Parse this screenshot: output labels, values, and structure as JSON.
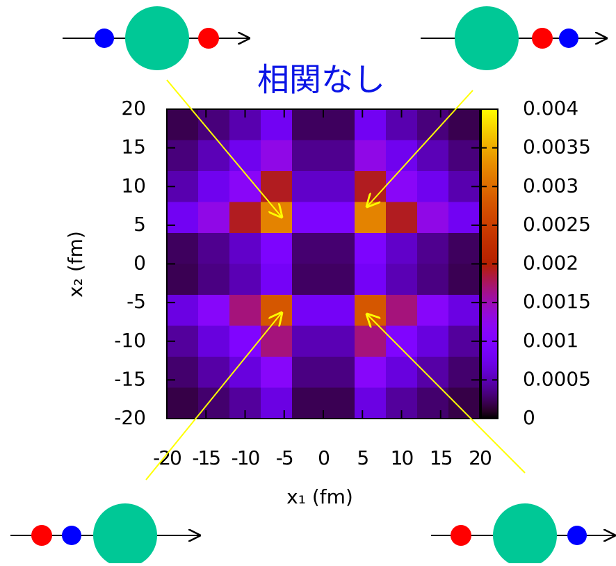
{
  "chart_data": {
    "type": "heatmap",
    "title": "相関なし",
    "x_label": "x₁ (fm)",
    "y_label": "x₂ (fm)",
    "x": [
      -18,
      -14,
      -10,
      -6,
      -2,
      2,
      6,
      10,
      14,
      18
    ],
    "y": [
      18,
      14,
      10,
      6,
      2,
      -2,
      -6,
      -10,
      -14,
      -18
    ],
    "z": [
      [
        0.0002,
        0.00032,
        0.00048,
        0.0008,
        0.00024,
        0.00024,
        0.0008,
        0.00048,
        0.00032,
        0.0002
      ],
      [
        0.00032,
        0.00051,
        0.00077,
        0.00128,
        0.00038,
        0.00038,
        0.00128,
        0.00077,
        0.00051,
        0.00032
      ],
      [
        0.00048,
        0.00077,
        0.00115,
        0.00192,
        0.00058,
        0.00058,
        0.00192,
        0.00115,
        0.00077,
        0.00048
      ],
      [
        0.0008,
        0.00128,
        0.00192,
        0.0032,
        0.00096,
        0.00096,
        0.0032,
        0.00192,
        0.00128,
        0.0008
      ],
      [
        0.00024,
        0.00038,
        0.00058,
        0.00096,
        0.00029,
        0.00029,
        0.00096,
        0.00058,
        0.00038,
        0.00024
      ],
      [
        0.00021,
        0.00034,
        0.0005,
        0.00084,
        0.00025,
        0.00025,
        0.00084,
        0.0005,
        0.00034,
        0.00021
      ],
      [
        0.0007,
        0.00112,
        0.00168,
        0.0028,
        0.00084,
        0.00084,
        0.0028,
        0.00168,
        0.00112,
        0.0007
      ],
      [
        0.00042,
        0.00067,
        0.00101,
        0.00168,
        0.0005,
        0.0005,
        0.00168,
        0.00101,
        0.00067,
        0.00042
      ],
      [
        0.00028,
        0.00045,
        0.00067,
        0.00112,
        0.00034,
        0.00034,
        0.00112,
        0.00067,
        0.00045,
        0.00028
      ],
      [
        0.00018,
        0.00028,
        0.00042,
        0.0007,
        0.00021,
        0.00021,
        0.0007,
        0.00042,
        0.00028,
        0.00018
      ]
    ],
    "xlim": [
      -20,
      20
    ],
    "ylim": [
      -20,
      20
    ],
    "xticks": [
      -20,
      -15,
      -10,
      -5,
      0,
      5,
      10,
      15,
      20
    ],
    "yticks": [
      -20,
      -15,
      -10,
      -5,
      0,
      5,
      10,
      15,
      20
    ],
    "zlim": [
      0,
      0.004
    ],
    "zticks": [
      0,
      0.0005,
      0.001,
      0.0015,
      0.002,
      0.0025,
      0.003,
      0.0035,
      0.004
    ],
    "title_color": "#0a14e6"
  }
}
